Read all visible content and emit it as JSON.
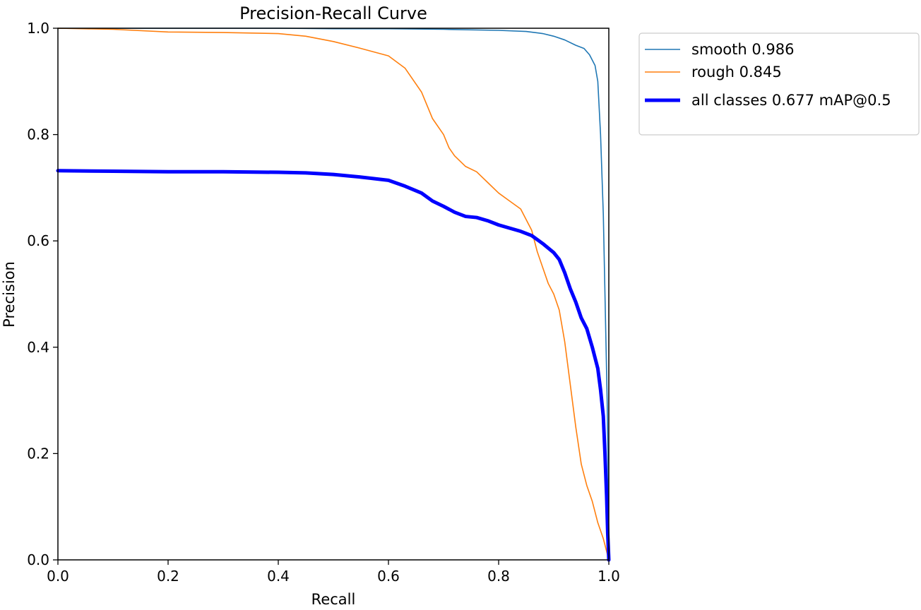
{
  "chart_data": {
    "type": "line",
    "title": "Precision-Recall Curve",
    "xlabel": "Recall",
    "ylabel": "Precision",
    "xlim": [
      0.0,
      1.0
    ],
    "ylim": [
      0.0,
      1.0
    ],
    "xticks": [
      "0.0",
      "0.2",
      "0.4",
      "0.6",
      "0.8",
      "1.0"
    ],
    "yticks": [
      "0.0",
      "0.2",
      "0.4",
      "0.6",
      "0.8",
      "1.0"
    ],
    "grid": false,
    "legend_position": "outside-right-top",
    "series": [
      {
        "name": "smooth 0.986",
        "color": "#1f77b4",
        "linewidth": "thin",
        "x": [
          0.0,
          0.1,
          0.2,
          0.3,
          0.4,
          0.5,
          0.6,
          0.7,
          0.8,
          0.85,
          0.88,
          0.9,
          0.92,
          0.94,
          0.955,
          0.965,
          0.975,
          0.98,
          0.985,
          0.99,
          0.993,
          0.995,
          0.997,
          0.999,
          1.0
        ],
        "y": [
          1.0,
          1.0,
          1.0,
          1.0,
          1.0,
          0.999,
          0.999,
          0.998,
          0.996,
          0.994,
          0.99,
          0.985,
          0.978,
          0.968,
          0.962,
          0.95,
          0.93,
          0.9,
          0.8,
          0.65,
          0.5,
          0.4,
          0.3,
          0.15,
          0.0
        ]
      },
      {
        "name": "rough 0.845",
        "color": "#ff7f0e",
        "linewidth": "thin",
        "x": [
          0.0,
          0.1,
          0.2,
          0.3,
          0.4,
          0.45,
          0.5,
          0.55,
          0.6,
          0.63,
          0.66,
          0.68,
          0.7,
          0.71,
          0.72,
          0.74,
          0.76,
          0.78,
          0.8,
          0.82,
          0.84,
          0.86,
          0.87,
          0.88,
          0.89,
          0.9,
          0.91,
          0.92,
          0.93,
          0.94,
          0.95,
          0.96,
          0.97,
          0.98,
          0.99,
          1.0
        ],
        "y": [
          1.0,
          0.998,
          0.993,
          0.992,
          0.99,
          0.985,
          0.975,
          0.962,
          0.948,
          0.925,
          0.88,
          0.83,
          0.8,
          0.775,
          0.76,
          0.74,
          0.73,
          0.71,
          0.69,
          0.675,
          0.66,
          0.62,
          0.58,
          0.55,
          0.52,
          0.5,
          0.47,
          0.41,
          0.33,
          0.25,
          0.18,
          0.14,
          0.11,
          0.07,
          0.04,
          0.0
        ]
      },
      {
        "name": "all classes 0.677 mAP@0.5",
        "color": "#0000ff",
        "linewidth": "thick",
        "x": [
          0.0,
          0.1,
          0.2,
          0.3,
          0.4,
          0.45,
          0.5,
          0.55,
          0.6,
          0.63,
          0.66,
          0.68,
          0.7,
          0.72,
          0.74,
          0.76,
          0.78,
          0.8,
          0.82,
          0.84,
          0.86,
          0.88,
          0.9,
          0.91,
          0.92,
          0.93,
          0.94,
          0.95,
          0.96,
          0.97,
          0.98,
          0.985,
          0.99,
          0.993,
          0.996,
          0.998,
          1.0
        ],
        "y": [
          0.732,
          0.731,
          0.73,
          0.73,
          0.729,
          0.728,
          0.725,
          0.72,
          0.714,
          0.703,
          0.69,
          0.675,
          0.665,
          0.654,
          0.646,
          0.644,
          0.638,
          0.63,
          0.624,
          0.618,
          0.61,
          0.595,
          0.578,
          0.565,
          0.54,
          0.51,
          0.485,
          0.455,
          0.435,
          0.4,
          0.36,
          0.32,
          0.27,
          0.2,
          0.12,
          0.05,
          0.0
        ]
      }
    ]
  }
}
